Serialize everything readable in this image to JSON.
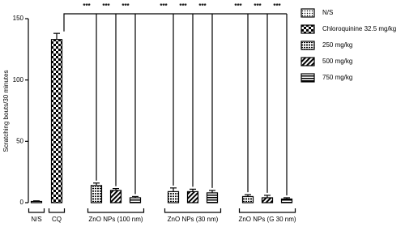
{
  "chart_data": {
    "type": "bar",
    "y_label": "Scratching bouts/30 minutes",
    "categories": [
      "N/S",
      "CQ",
      "ZnO NPs (100 nm)",
      "ZnO NPs (30 nm)",
      "ZnO NPs (G 30 nm)"
    ],
    "series": [
      {
        "name": "N/S",
        "color": "#000000",
        "values": [
          1,
          null,
          null,
          null,
          null
        ],
        "errors": [
          0.5,
          null,
          null,
          null,
          null
        ]
      },
      {
        "name": "Chloroquinine 32.5 mg/kg",
        "color": "#000000",
        "values": [
          null,
          133,
          null,
          null,
          null
        ],
        "errors": [
          null,
          5,
          null,
          null,
          null
        ]
      },
      {
        "name": "250 mg/kg",
        "color": "#000000",
        "values": [
          null,
          null,
          14,
          9,
          5
        ],
        "errors": [
          null,
          null,
          2,
          3,
          1.5
        ]
      },
      {
        "name": "500 mg/kg",
        "color": "#000000",
        "values": [
          null,
          null,
          10,
          9,
          4
        ],
        "errors": [
          null,
          null,
          1.5,
          2,
          2
        ]
      },
      {
        "name": "750 mg/kg",
        "color": "#000000",
        "values": [
          null,
          null,
          4,
          8,
          3
        ],
        "errors": [
          null,
          null,
          1,
          2,
          1
        ]
      }
    ],
    "annotations": [
      "***",
      "***",
      "***",
      "***",
      "***",
      "***",
      "***",
      "***",
      "***"
    ],
    "ylim": [
      0,
      150
    ],
    "yticks": [
      0,
      50,
      100,
      150
    ],
    "grid": false
  }
}
